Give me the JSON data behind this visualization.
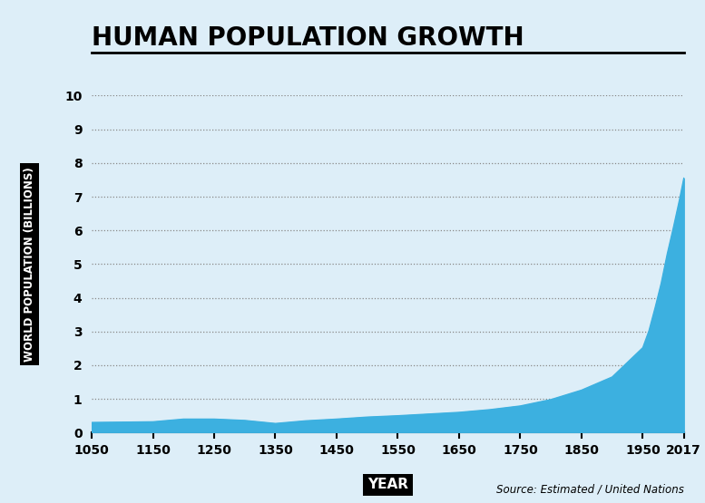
{
  "title": "HUMAN POPULATION GROWTH",
  "xlabel": "YEAR",
  "ylabel": "WORLD POPULATION (BILLIONS)",
  "source_text": "Source: Estimated / United Nations",
  "background_color": "#ddeef8",
  "fill_color": "#3cb0e0",
  "line_color": "#3cb0e0",
  "xlim": [
    1050,
    2017
  ],
  "ylim": [
    0,
    10
  ],
  "yticks": [
    0,
    1,
    2,
    3,
    4,
    5,
    6,
    7,
    8,
    9,
    10
  ],
  "xticks": [
    1050,
    1150,
    1250,
    1350,
    1450,
    1550,
    1650,
    1750,
    1850,
    1950,
    2017
  ],
  "years": [
    1050,
    1100,
    1150,
    1200,
    1250,
    1300,
    1350,
    1400,
    1450,
    1500,
    1550,
    1600,
    1650,
    1700,
    1750,
    1800,
    1850,
    1900,
    1950,
    1960,
    1970,
    1980,
    1990,
    2000,
    2010,
    2017
  ],
  "population": [
    0.3,
    0.31,
    0.32,
    0.4,
    0.4,
    0.36,
    0.27,
    0.35,
    0.4,
    0.46,
    0.5,
    0.55,
    0.6,
    0.68,
    0.79,
    0.98,
    1.26,
    1.65,
    2.52,
    3.02,
    3.7,
    4.43,
    5.31,
    6.09,
    6.92,
    7.55
  ]
}
